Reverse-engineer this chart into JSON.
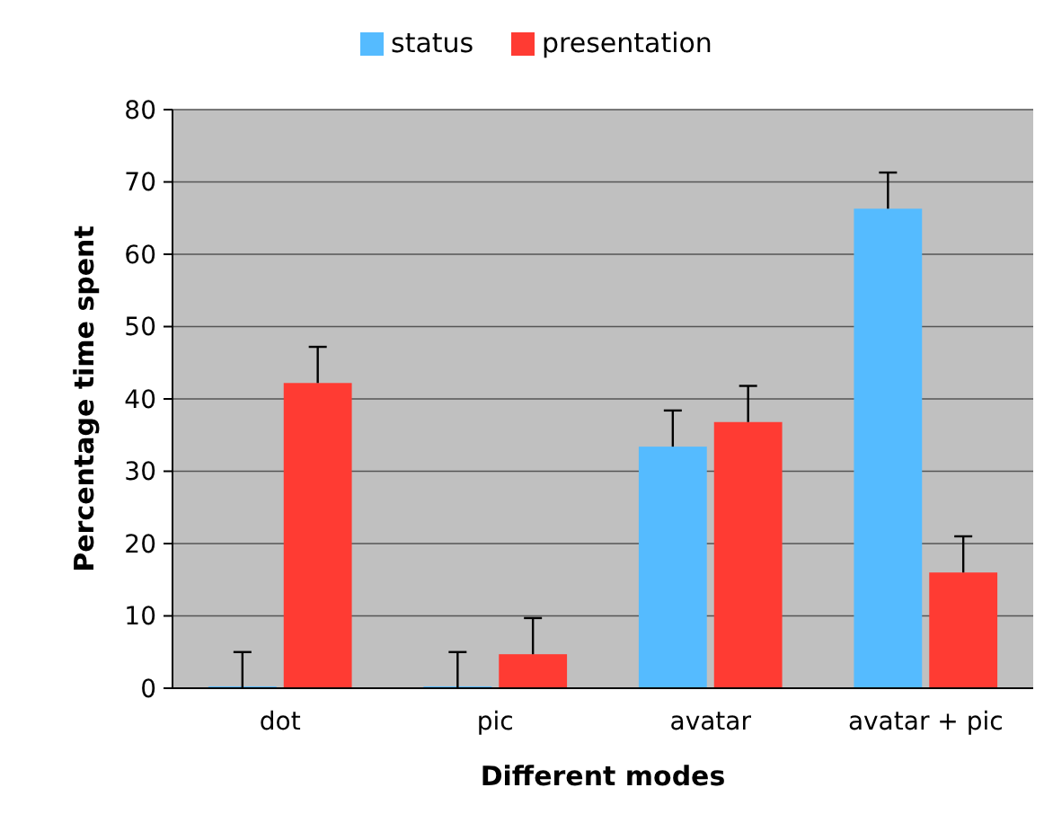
{
  "chart_data": {
    "type": "bar",
    "xlabel": "Different modes",
    "ylabel": "Percentage time spent",
    "categories": [
      "dot",
      "pic",
      "avatar",
      "avatar + pic"
    ],
    "series": [
      {
        "name": "status",
        "color": "#55bbff",
        "values": [
          0,
          0,
          33.4,
          66.3
        ],
        "errors": [
          5,
          5,
          5,
          5
        ]
      },
      {
        "name": "presentation",
        "color": "#ff3b33",
        "values": [
          42.2,
          4.7,
          36.8,
          16
        ],
        "errors": [
          5,
          5,
          5,
          5
        ]
      }
    ],
    "ylim": [
      0,
      80
    ],
    "yticks": [
      0,
      10,
      20,
      30,
      40,
      50,
      60,
      70,
      80
    ],
    "grid": "y",
    "legend": "top"
  }
}
